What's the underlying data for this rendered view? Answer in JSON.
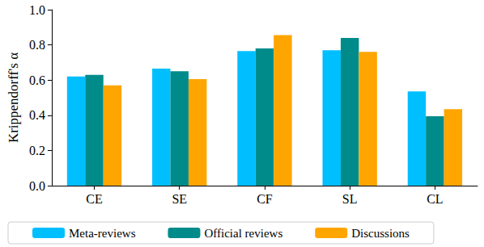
{
  "chart_data": {
    "type": "bar",
    "categories": [
      "CE",
      "SE",
      "CF",
      "SL",
      "CL"
    ],
    "series": [
      {
        "name": "Meta-reviews",
        "color": "#00bfff",
        "values": [
          0.62,
          0.665,
          0.765,
          0.77,
          0.535
        ]
      },
      {
        "name": "Official reviews",
        "color": "#008b8b",
        "values": [
          0.63,
          0.65,
          0.78,
          0.84,
          0.395
        ]
      },
      {
        "name": "Discussions",
        "color": "#ffa500",
        "values": [
          0.57,
          0.605,
          0.855,
          0.76,
          0.435
        ]
      }
    ],
    "y_label": "Krippendorff's α",
    "ylim": [
      0,
      1
    ],
    "yticks": [
      {
        "value": 0,
        "label": "0.0"
      },
      {
        "value": 0.2,
        "label": "0.2"
      },
      {
        "value": 0.4,
        "label": "0.4"
      },
      {
        "value": 0.6,
        "label": "0.6"
      },
      {
        "value": 0.8,
        "label": "0.8"
      },
      {
        "value": 1,
        "label": "1.0"
      }
    ],
    "grid": false,
    "legend": "bottom"
  }
}
